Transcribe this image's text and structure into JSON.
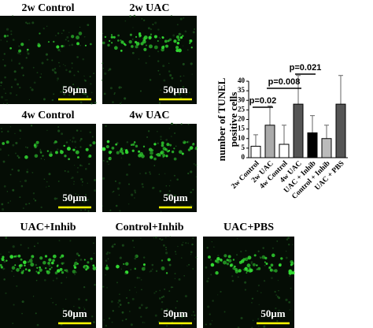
{
  "panels": [
    {
      "label": "2w Control",
      "scale_bar": "50μm"
    },
    {
      "label": "2w UAC",
      "scale_bar": "50μm"
    },
    {
      "label": "4w Control",
      "scale_bar": "50μm"
    },
    {
      "label": "4w UAC",
      "scale_bar": "50μm"
    },
    {
      "label": "UAC+Inhib",
      "scale_bar": "50μm"
    },
    {
      "label": "Control+Inhib",
      "scale_bar": "50μm"
    },
    {
      "label": "UAC+PBS",
      "scale_bar": "50μm"
    }
  ],
  "chart_data": {
    "type": "bar",
    "y_label_lines": [
      "number of TUNEL",
      "positive cells"
    ],
    "categories": [
      "2w Control",
      "2w UAC",
      "4w Control",
      "4w UAC",
      "UAC + Inhib",
      "Control + Inhib",
      "UAC + PBS"
    ],
    "values": [
      6,
      17,
      7,
      28,
      13,
      10,
      28
    ],
    "errors": [
      6,
      10,
      10,
      15,
      9,
      7,
      15
    ],
    "colors": [
      "#ffffff",
      "#aaaaaa",
      "#ffffff",
      "#555555",
      "#000000",
      "#bbbbbb",
      "#555555"
    ],
    "ylim": [
      0,
      40
    ],
    "yticks": [
      0,
      5,
      10,
      15,
      20,
      25,
      30,
      35,
      40
    ],
    "annotations": [
      "p=0.02",
      "p=0.008",
      "p=0.021"
    ]
  }
}
